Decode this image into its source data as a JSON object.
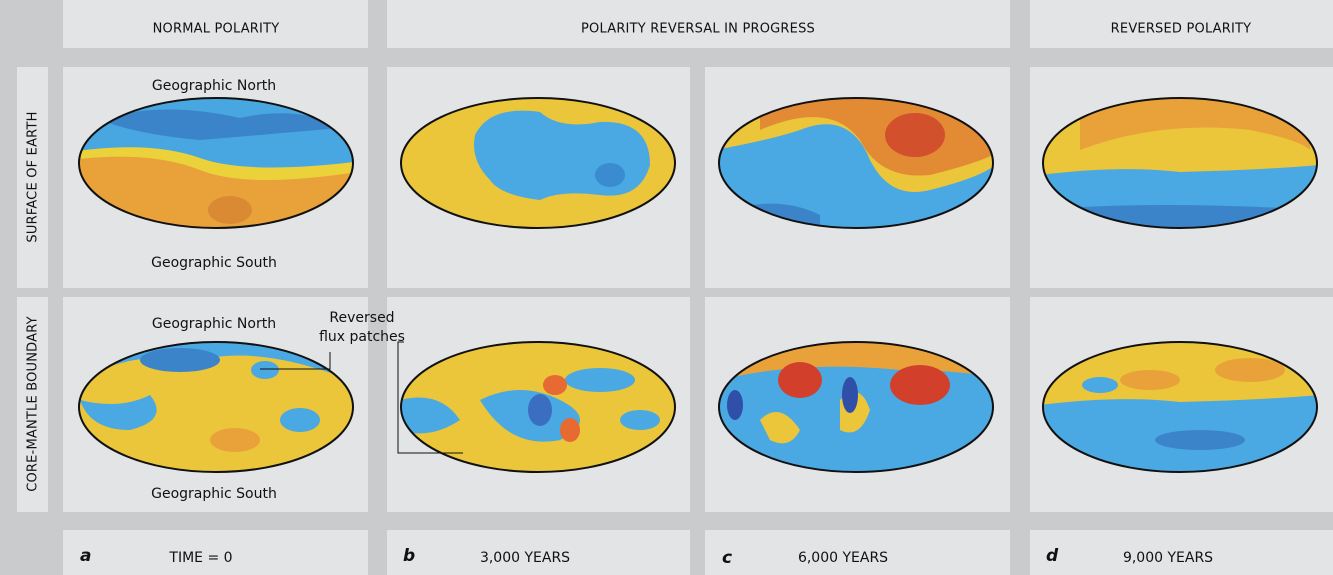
{
  "header": {
    "columns": [
      "NORMAL POLARITY",
      "POLARITY REVERSAL IN PROGRESS",
      "REVERSED POLARITY"
    ]
  },
  "rows": [
    "SURFACE OF EARTH",
    "CORE-MANTLE BOUNDARY"
  ],
  "maps": {
    "surface_a": {
      "top": "Geographic North",
      "bottom": "Geographic South"
    },
    "core_a": {
      "top": "Geographic North",
      "bottom": "Geographic South"
    }
  },
  "annotation": {
    "lines": [
      "Reversed",
      "flux patches"
    ]
  },
  "steps": [
    {
      "letter": "a",
      "time": "TIME = 0"
    },
    {
      "letter": "b",
      "time": "3,000 YEARS"
    },
    {
      "letter": "c",
      "time": "6,000 YEARS"
    },
    {
      "letter": "d",
      "time": "9,000 YEARS"
    }
  ]
}
